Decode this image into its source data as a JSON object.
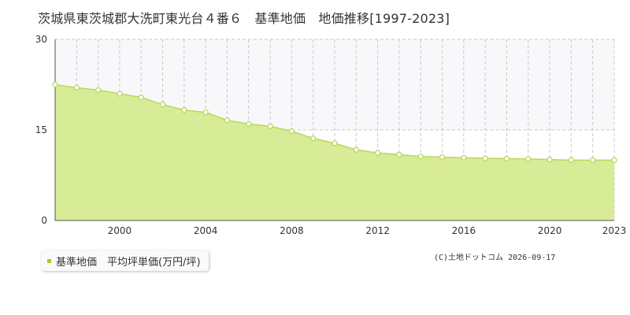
{
  "title": "茨城県東茨城郡大洗町東光台４番６　基準地価　地価推移[1997-2023]",
  "legend": {
    "label": "基準地価　平均坪単価(万円/坪)"
  },
  "copyright": "(C)土地ドットコム 2026-09-17",
  "colors": {
    "fill": "#d8eb96",
    "line": "#b8d85e",
    "point_stroke": "#b8d85e",
    "point_fill": "#ffffff",
    "grid": "#c8c8c8",
    "upper_band": "#f8f8fb",
    "legend_swatch": "#a8cc2a"
  },
  "chart_data": {
    "type": "area",
    "title": "茨城県東茨城郡大洗町東光台４番６　基準地価　地価推移[1997-2023]",
    "xlabel": "",
    "ylabel": "",
    "x": [
      1997,
      1998,
      1999,
      2000,
      2001,
      2002,
      2003,
      2004,
      2005,
      2006,
      2007,
      2008,
      2009,
      2010,
      2011,
      2012,
      2013,
      2014,
      2015,
      2016,
      2017,
      2018,
      2019,
      2020,
      2021,
      2022,
      2023
    ],
    "series": [
      {
        "name": "基準地価　平均坪単価(万円/坪)",
        "values": [
          22.5,
          22.0,
          21.6,
          21.0,
          20.4,
          19.2,
          18.3,
          17.9,
          16.6,
          16.0,
          15.6,
          14.8,
          13.6,
          12.8,
          11.7,
          11.2,
          10.9,
          10.6,
          10.5,
          10.4,
          10.3,
          10.25,
          10.2,
          10.1,
          10.0,
          10.0,
          10.0
        ]
      }
    ],
    "xlim": [
      1997,
      2023
    ],
    "ylim": [
      0,
      30
    ],
    "y_ticks": [
      0,
      15,
      30
    ],
    "x_tick_labels": [
      2000,
      2004,
      2008,
      2012,
      2016,
      2020,
      2023
    ],
    "grid": true,
    "legend_position": "bottom-left"
  }
}
